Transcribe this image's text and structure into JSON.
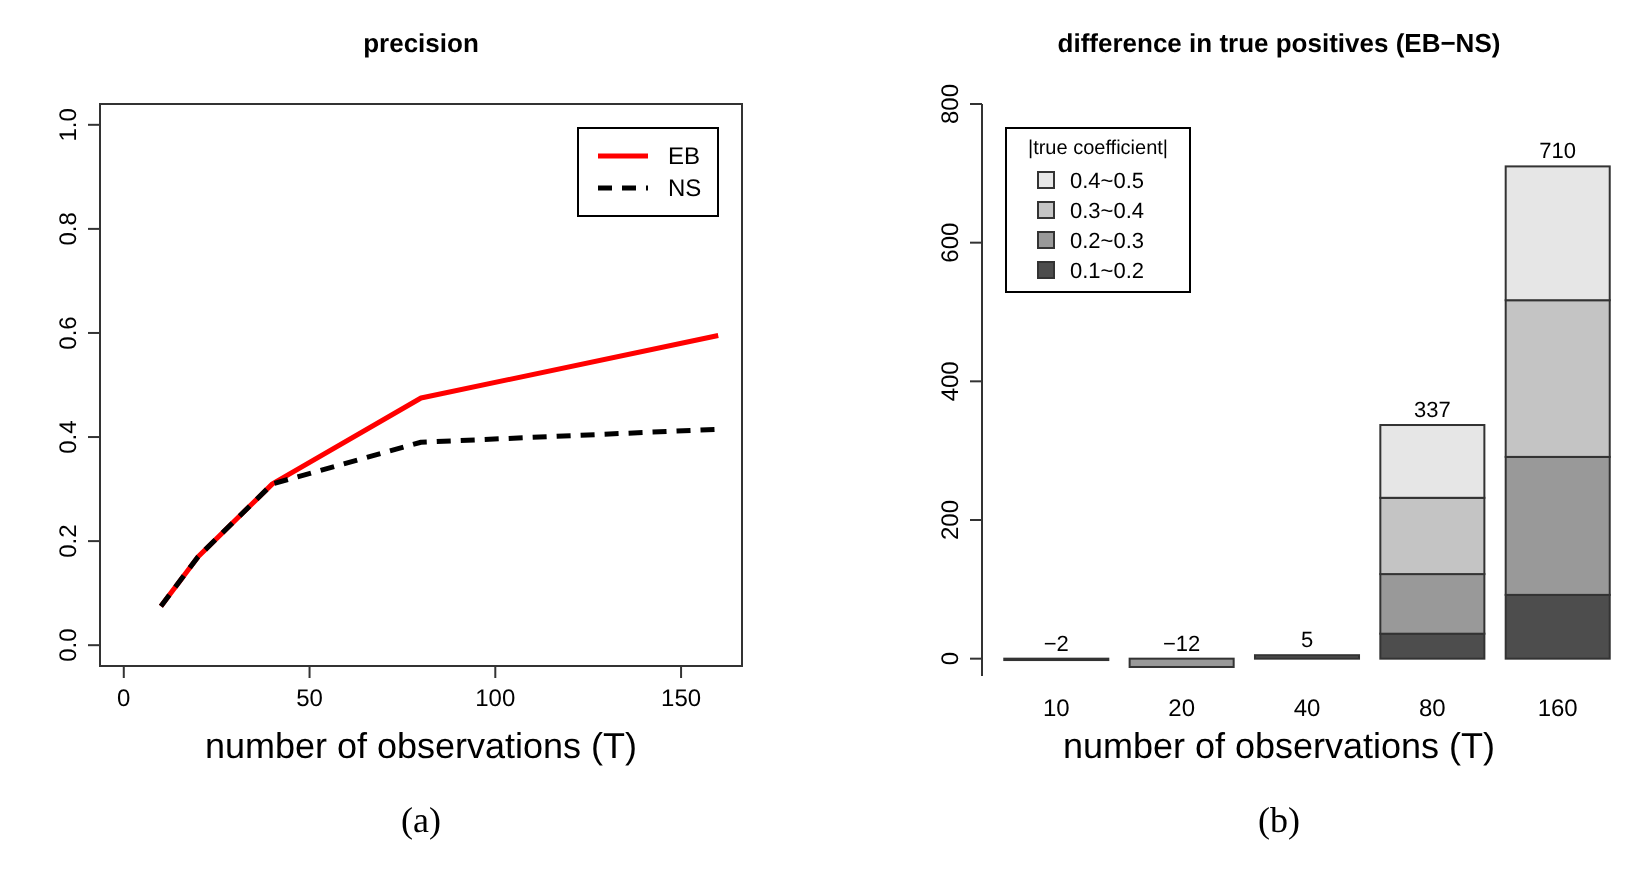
{
  "chart_data": [
    {
      "type": "line",
      "title": "precision",
      "xlabel": "number of observations (T)",
      "x": [
        10,
        20,
        40,
        80,
        160
      ],
      "series": [
        {
          "name": "EB",
          "color": "#ff0000",
          "line_style": "solid",
          "values": [
            0.075,
            0.17,
            0.31,
            0.475,
            0.595
          ]
        },
        {
          "name": "NS",
          "color": "#000000",
          "line_style": "dashed",
          "values": [
            0.075,
            0.17,
            0.31,
            0.39,
            0.415
          ]
        }
      ],
      "xlim": [
        -6.4,
        166.4
      ],
      "xticks": [
        0,
        50,
        100,
        150
      ],
      "ylim": [
        -0.04,
        1.04
      ],
      "yticks": [
        {
          "value": 0,
          "label": "0.0"
        },
        0.2,
        0.4,
        0.6,
        0.8,
        {
          "value": 1,
          "label": "1.0"
        }
      ],
      "legend": "top right",
      "marker": "none",
      "annotations": [
        "(a)"
      ]
    },
    {
      "type": "bar",
      "title": "difference in true positives (EB−NS)",
      "xlabel": "number of observations (T)",
      "categories": [
        "10",
        "20",
        "40",
        "80",
        "160"
      ],
      "stacked": true,
      "legend": "top left",
      "legend_title": "|true coefficient|",
      "series": [
        {
          "name": "0.1~0.2",
          "color": "#4d4d4d",
          "values": [
            -2,
            0,
            5,
            36,
            92
          ]
        },
        {
          "name": "0.2~0.3",
          "color": "#999999",
          "values": [
            0,
            -12,
            0,
            86,
            199
          ]
        },
        {
          "name": "0.3~0.4",
          "color": "#c4c4c4",
          "values": [
            0,
            0,
            0,
            110,
            226
          ]
        },
        {
          "name": "0.4~0.5",
          "color": "#e6e6e6",
          "values": [
            0,
            0,
            0,
            105,
            193
          ]
        }
      ],
      "totals": [
        "−2",
        "−12",
        "5",
        "337",
        "710"
      ],
      "ylim": [
        -25,
        800
      ],
      "yticks": [
        0,
        200,
        400,
        600,
        800
      ],
      "annotations": [
        "(b)"
      ]
    }
  ]
}
